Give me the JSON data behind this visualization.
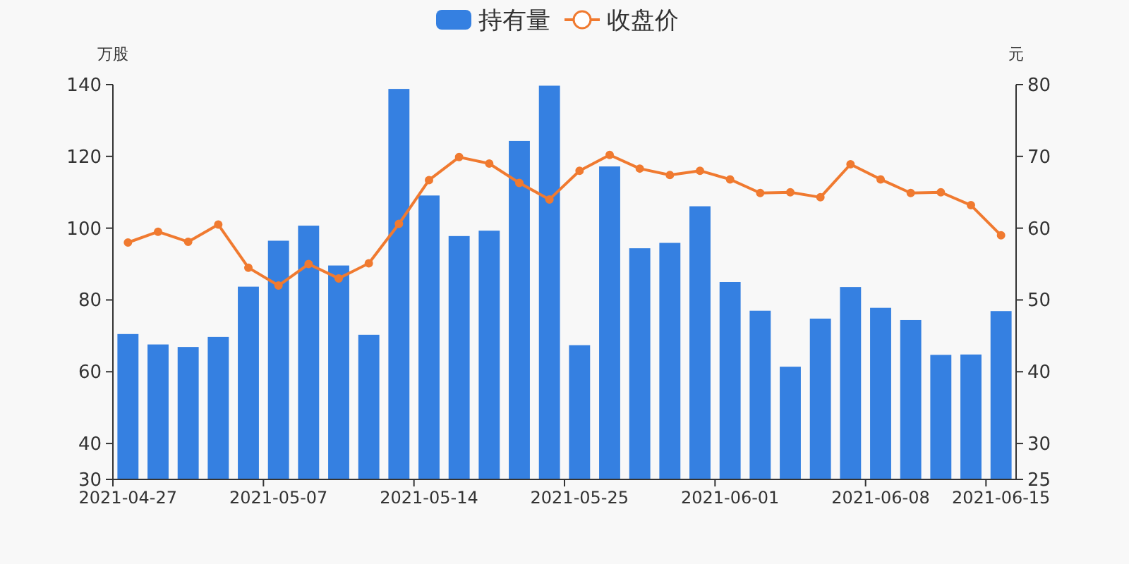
{
  "chart_data": {
    "type": "bar",
    "categories": [
      "2021-04-27",
      null,
      null,
      null,
      null,
      "2021-05-07",
      null,
      null,
      null,
      null,
      "2021-05-14",
      null,
      null,
      null,
      null,
      "2021-05-25",
      null,
      null,
      null,
      null,
      "2021-06-01",
      null,
      null,
      null,
      null,
      "2021-06-08",
      null,
      null,
      null,
      "2021-06-15"
    ],
    "series": [
      {
        "name": "持有量",
        "color": "#3580e1",
        "values": [
          70.5,
          67.6,
          66.9,
          69.7,
          83.7,
          96.5,
          100.7,
          89.6,
          70.3,
          138.8,
          109.1,
          97.8,
          99.3,
          124.3,
          139.7,
          67.4,
          117.2,
          94.4,
          95.9,
          106.1,
          85,
          77,
          61.4,
          74.8,
          83.6,
          77.8,
          74.4,
          64.7,
          64.8,
          76.9
        ]
      },
      {
        "name": "收盘价",
        "type": "line",
        "axis": "y2",
        "color": "#f07a30",
        "marker": "circle",
        "values": [
          58,
          59.5,
          58.1,
          60.5,
          54.5,
          52,
          55,
          53,
          55.1,
          60.6,
          66.7,
          69.9,
          69,
          66.3,
          64,
          68,
          70.2,
          68.3,
          67.4,
          68,
          66.8,
          64.9,
          65,
          64.3,
          68.9,
          66.8,
          64.9,
          65,
          63.2,
          59
        ]
      }
    ],
    "ylabel": "万股",
    "y2label": "元",
    "ylim": [
      30,
      140
    ],
    "yticks": [
      30,
      40,
      60,
      80,
      100,
      120,
      140
    ],
    "y2lim": [
      25,
      80
    ],
    "y2ticks": [
      25,
      30,
      40,
      50,
      60,
      70,
      80
    ],
    "legend": "top"
  }
}
